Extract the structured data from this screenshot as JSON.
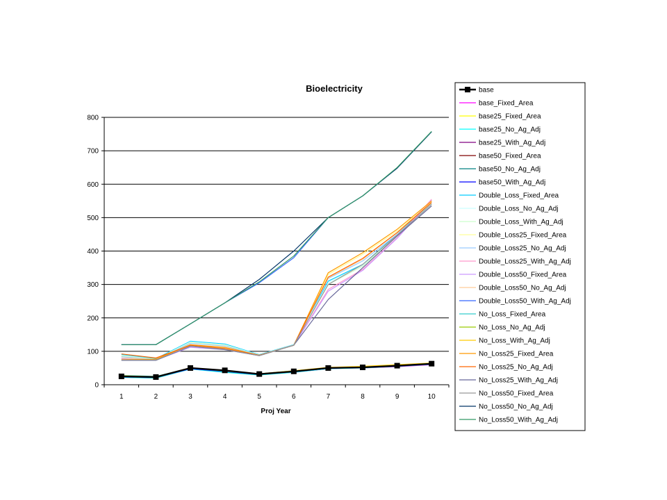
{
  "chart_data": {
    "type": "line",
    "title": "Bioelectricity",
    "xlabel": "Proj Year",
    "ylabel": "",
    "x": [
      1,
      2,
      3,
      4,
      5,
      6,
      7,
      8,
      9,
      10
    ],
    "ylim": [
      0,
      800
    ],
    "yticks": [
      0,
      100,
      200,
      300,
      400,
      500,
      600,
      700,
      800
    ],
    "grid": "horizontal",
    "legend_position": "right",
    "series": [
      {
        "name": "base",
        "color": "#000000",
        "marker": "square",
        "values": [
          25,
          23,
          50,
          43,
          32,
          40,
          50,
          52,
          57,
          63
        ]
      },
      {
        "name": "base_Fixed_Area",
        "color": "#ff00ff",
        "values": [
          22,
          20,
          47,
          38,
          30,
          37,
          48,
          50,
          54,
          60
        ]
      },
      {
        "name": "base25_Fixed_Area",
        "color": "#ffff00",
        "values": [
          23,
          20,
          48,
          38,
          29,
          38,
          49,
          52,
          56,
          62
        ]
      },
      {
        "name": "base25_No_Ag_Adj",
        "color": "#00ffff",
        "values": [
          22,
          20,
          47,
          37,
          29,
          37,
          48,
          50,
          55,
          61
        ]
      },
      {
        "name": "base25_With_Ag_Adj",
        "color": "#800080",
        "values": [
          24,
          22,
          49,
          41,
          31,
          39,
          50,
          52,
          56,
          62
        ]
      },
      {
        "name": "base50_Fixed_Area",
        "color": "#800000",
        "values": [
          25,
          23,
          49,
          42,
          32,
          40,
          50,
          52,
          56,
          62
        ]
      },
      {
        "name": "base50_No_Ag_Adj",
        "color": "#008080",
        "values": [
          23,
          21,
          48,
          39,
          30,
          38,
          49,
          51,
          55,
          61
        ]
      },
      {
        "name": "base50_With_Ag_Adj",
        "color": "#0000ff",
        "values": [
          24,
          22,
          48,
          40,
          31,
          39,
          49,
          52,
          56,
          62
        ]
      },
      {
        "name": "Double_Loss_Fixed_Area",
        "color": "#00ccff",
        "values": [
          90,
          78,
          130,
          122,
          90,
          120,
          310,
          360,
          450,
          545
        ]
      },
      {
        "name": "Double_Loss_No_Ag_Adj",
        "color": "#ccffff",
        "values": [
          88,
          76,
          128,
          120,
          89,
          119,
          305,
          358,
          448,
          542
        ]
      },
      {
        "name": "Double_Loss_With_Ag_Adj",
        "color": "#ccffcc",
        "values": [
          86,
          75,
          126,
          118,
          88,
          118,
          300,
          355,
          446,
          540
        ]
      },
      {
        "name": "Double_Loss25_Fixed_Area",
        "color": "#ffff99",
        "values": [
          85,
          76,
          125,
          117,
          88,
          118,
          330,
          390,
          460,
          548
        ]
      },
      {
        "name": "Double_Loss25_No_Ag_Adj",
        "color": "#99ccff",
        "values": [
          84,
          75,
          124,
          116,
          88,
          118,
          318,
          370,
          450,
          552
        ]
      },
      {
        "name": "Double_Loss25_With_Ag_Adj",
        "color": "#ff99cc",
        "values": [
          80,
          74,
          115,
          108,
          88,
          118,
          285,
          345,
          440,
          555
        ]
      },
      {
        "name": "Double_Loss50_Fixed_Area",
        "color": "#cc99ff",
        "values": [
          78,
          74,
          112,
          105,
          87,
          118,
          280,
          342,
          438,
          552
        ]
      },
      {
        "name": "Double_Loss50_No_Ag_Adj",
        "color": "#ffcc99",
        "values": [
          80,
          75,
          118,
          110,
          88,
          118,
          320,
          375,
          455,
          548
        ]
      },
      {
        "name": "Double_Loss50_With_Ag_Adj",
        "color": "#3366ff",
        "values": [
          120,
          120,
          182,
          245,
          305,
          380,
          500,
          565,
          648,
          757
        ]
      },
      {
        "name": "No_Loss_Fixed_Area",
        "color": "#33cccc",
        "values": [
          28,
          25,
          50,
          42,
          33,
          42,
          50,
          53,
          58,
          63
        ]
      },
      {
        "name": "No_Loss_No_Ag_Adj",
        "color": "#99cc00",
        "values": [
          26,
          24,
          50,
          41,
          32,
          41,
          51,
          54,
          59,
          64
        ]
      },
      {
        "name": "No_Loss_With_Ag_Adj",
        "color": "#ffcc00",
        "values": [
          27,
          24,
          51,
          42,
          33,
          42,
          52,
          55,
          60,
          65
        ]
      },
      {
        "name": "No_Loss25_Fixed_Area",
        "color": "#ff9900",
        "values": [
          75,
          76,
          120,
          112,
          88,
          118,
          335,
          395,
          465,
          550
        ]
      },
      {
        "name": "No_Loss25_No_Ag_Adj",
        "color": "#ff6600",
        "values": [
          92,
          80,
          118,
          108,
          88,
          118,
          322,
          378,
          455,
          545
        ]
      },
      {
        "name": "No_Loss25_With_Ag_Adj",
        "color": "#666699",
        "values": [
          73,
          73,
          115,
          105,
          87,
          118,
          255,
          350,
          445,
          535
        ]
      },
      {
        "name": "No_Loss50_Fixed_Area",
        "color": "#969696",
        "values": [
          74,
          74,
          116,
          106,
          87,
          118,
          300,
          360,
          448,
          540
        ]
      },
      {
        "name": "No_Loss50_No_Ag_Adj",
        "color": "#003366",
        "values": [
          120,
          120,
          182,
          245,
          315,
          400,
          500,
          565,
          648,
          757
        ]
      },
      {
        "name": "No_Loss50_With_Ag_Adj",
        "color": "#339966",
        "values": [
          120,
          120,
          182,
          245,
          308,
          385,
          500,
          565,
          650,
          758
        ]
      }
    ]
  }
}
